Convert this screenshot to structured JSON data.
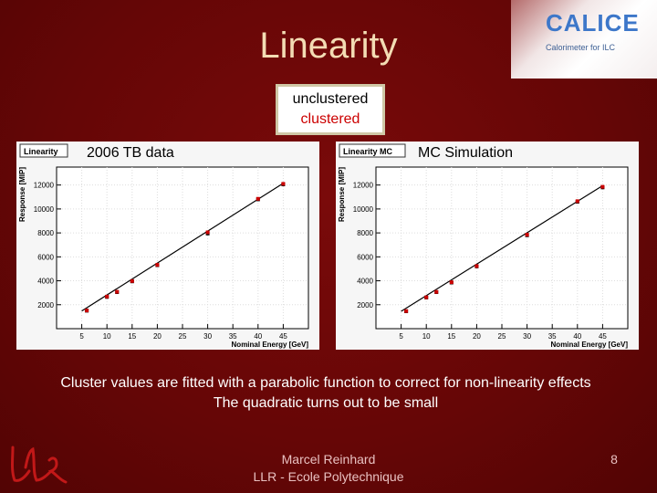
{
  "slide": {
    "title": "Linearity",
    "logo": {
      "word": "CALICE",
      "tagline": "Calorimeter for ILC"
    },
    "legend": {
      "unclustered_label": "unclustered",
      "clustered_label": "clustered",
      "unclustered_color": "#000000",
      "clustered_color": "#cc0000"
    },
    "caption_line1": "Cluster values are fitted with a parabolic function to correct for non-linearity effects",
    "caption_line2": "The quadratic turns out to be small",
    "footer": {
      "author": "Marcel Reinhard",
      "affiliation": "LLR - Ecole Polytechnique",
      "page": "8"
    },
    "llr_logo_text": "LLR"
  },
  "chart_data": [
    {
      "type": "scatter",
      "title": "Linearity",
      "panel_label": "2006 TB data",
      "xlabel": "Nominal Energy [GeV]",
      "ylabel": "Response [MIP]",
      "xlim": [
        0,
        50
      ],
      "ylim": [
        0,
        13500
      ],
      "x_ticks": [
        5,
        10,
        15,
        20,
        25,
        30,
        35,
        40,
        45
      ],
      "y_ticks": [
        2000,
        4000,
        6000,
        8000,
        10000,
        12000
      ],
      "grid": true,
      "fit_line": {
        "x": [
          5,
          45
        ],
        "y": [
          1480,
          12150
        ]
      },
      "series": [
        {
          "name": "unclustered",
          "color": "#000000",
          "x": [
            6,
            10,
            12,
            15,
            20,
            30,
            40,
            45
          ],
          "y": [
            1500,
            2650,
            3050,
            3950,
            5300,
            7950,
            10800,
            12050
          ]
        },
        {
          "name": "clustered",
          "color": "#cc0000",
          "x": [
            6,
            10,
            12,
            15,
            20,
            30,
            40,
            45
          ],
          "y": [
            1520,
            2680,
            3080,
            3980,
            5330,
            8050,
            10850,
            12100
          ]
        }
      ]
    },
    {
      "type": "scatter",
      "title": "Linearity MC",
      "panel_label": "MC Simulation",
      "xlabel": "Nominal Energy [GeV]",
      "ylabel": "Response [MIP]",
      "xlim": [
        0,
        50
      ],
      "ylim": [
        0,
        13500
      ],
      "x_ticks": [
        5,
        10,
        15,
        20,
        25,
        30,
        35,
        40,
        45
      ],
      "y_ticks": [
        2000,
        4000,
        6000,
        8000,
        10000,
        12000
      ],
      "grid": true,
      "fit_line": {
        "x": [
          5,
          45
        ],
        "y": [
          1450,
          11950
        ]
      },
      "series": [
        {
          "name": "unclustered",
          "color": "#000000",
          "x": [
            6,
            10,
            12,
            15,
            20,
            30,
            40,
            45
          ],
          "y": [
            1450,
            2600,
            3050,
            3850,
            5200,
            7800,
            10600,
            11800
          ]
        },
        {
          "name": "clustered",
          "color": "#cc0000",
          "x": [
            6,
            10,
            12,
            15,
            20,
            30,
            40,
            45
          ],
          "y": [
            1470,
            2620,
            3070,
            3880,
            5230,
            7850,
            10650,
            11850
          ]
        }
      ]
    }
  ]
}
